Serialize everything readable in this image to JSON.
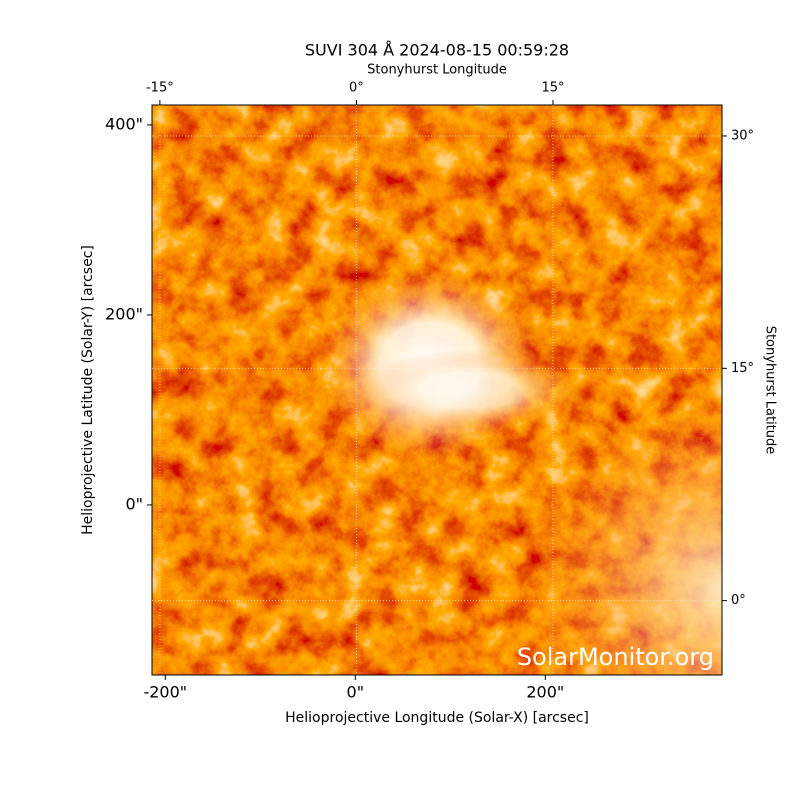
{
  "chart_data": {
    "type": "image",
    "title": "SUVI 304 Å 2024-08-15 00:59:28",
    "xlabel": "Helioprojective Longitude (Solar-X) [arcsec]",
    "ylabel": "Helioprojective Latitude (Solar-Y) [arcsec]",
    "x2label": "Stonyhurst Longitude",
    "y2label": "Stonyhurst Latitude",
    "watermark": "SolarMonitor.org",
    "xlim": [
      -214,
      386
    ],
    "xticks": [
      {
        "value": -200,
        "label": "-200\""
      },
      {
        "value": 0,
        "label": "0\""
      },
      {
        "value": 200,
        "label": "200\""
      }
    ],
    "ylim": [
      -179,
      421
    ],
    "yticks": [
      {
        "value": 0,
        "label": "0\""
      },
      {
        "value": 200,
        "label": "200\""
      },
      {
        "value": 400,
        "label": "400\""
      }
    ],
    "x2lim": [
      -15.6,
      27.9
    ],
    "x2ticks": [
      {
        "value": -15,
        "label": "-15°"
      },
      {
        "value": 0,
        "label": "0°"
      },
      {
        "value": 15,
        "label": "15°"
      }
    ],
    "y2lim": [
      -4.8,
      32
    ],
    "y2ticks": [
      {
        "value": 0,
        "label": "0°"
      },
      {
        "value": 15,
        "label": "15°"
      },
      {
        "value": 30,
        "label": "30°"
      }
    ],
    "grid": true
  }
}
